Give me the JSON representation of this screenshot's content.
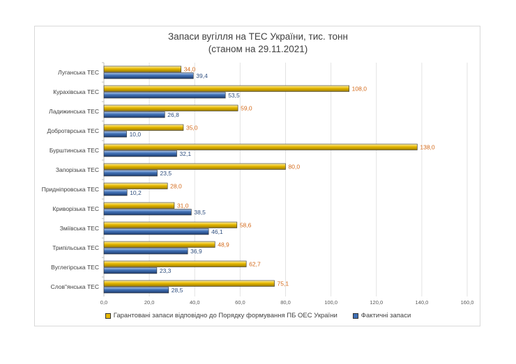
{
  "chart_data": {
    "type": "bar",
    "orientation": "horizontal",
    "title": "Запаси вугілля на ТЕС України, тис. тонн",
    "subtitle": "(станом на 29.11.2021)",
    "xlabel": "",
    "ylabel": "",
    "xlim": [
      0,
      160
    ],
    "x_ticks": [
      "0,0",
      "20,0",
      "40,0",
      "60,0",
      "80,0",
      "100,0",
      "120,0",
      "140,0",
      "160,0"
    ],
    "grid": true,
    "legend_position": "bottom",
    "categories": [
      "Луганська ТЕС",
      "Курахівська ТЕС",
      "Ладижинська ТЕС",
      "Добротврська ТЕС",
      "Бурштинська ТЕС",
      "Запорізька ТЕС",
      "Придніпровська ТЕС",
      "Криворізька ТЕС",
      "Зміївська ТЕС",
      "Трипільська ТЕС",
      "Вуглегірська ТЕС",
      "Слов\"янська ТЕС"
    ],
    "series": [
      {
        "name": "Гарантовані запаси відповідно до Порядку формування ПБ ОЕС України",
        "color": "#e6b800",
        "label_color": "#d46a1a",
        "values": [
          34.0,
          108.0,
          59.0,
          35.0,
          138.0,
          80.0,
          28.0,
          31.0,
          58.6,
          48.9,
          62.7,
          75.1
        ],
        "labels": [
          "34,0",
          "108,0",
          "59,0",
          "35,0",
          "138,0",
          "80,0",
          "28,0",
          "31,0",
          "58,6",
          "48,9",
          "62,7",
          "75,1"
        ]
      },
      {
        "name": "Фактичні запаси",
        "color": "#3f6fb5",
        "label_color": "#2f4f7f",
        "values": [
          39.4,
          53.5,
          26.8,
          10.0,
          32.1,
          23.5,
          10.2,
          38.5,
          46.1,
          36.9,
          23.3,
          28.5
        ],
        "labels": [
          "39,4",
          "53,5",
          "26,8",
          "10,0",
          "32,1",
          "23,5",
          "10,2",
          "38,5",
          "46,1",
          "36,9",
          "23,3",
          "28,5"
        ]
      }
    ]
  }
}
